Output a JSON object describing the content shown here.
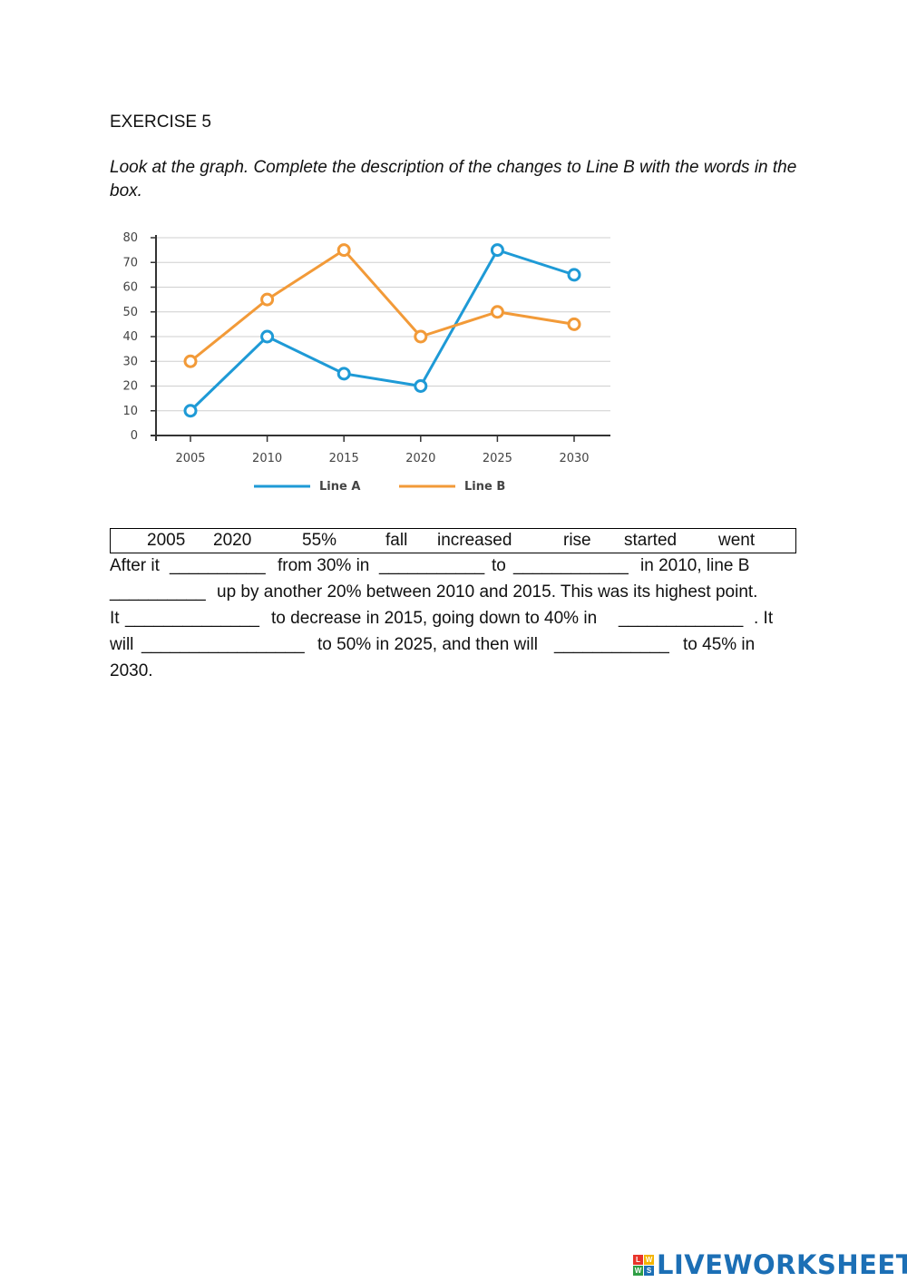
{
  "exercise_title": "EXERCISE 5",
  "instructions": "Look at the graph. Complete the description of the changes to Line B with the words in the box.",
  "chart_data": {
    "type": "line",
    "categories": [
      "2005",
      "2010",
      "2015",
      "2020",
      "2025",
      "2030"
    ],
    "series": [
      {
        "name": "Line A",
        "color": "#1e9ad6",
        "values": [
          10,
          40,
          25,
          20,
          75,
          65
        ]
      },
      {
        "name": "Line B",
        "color": "#f29a38",
        "values": [
          30,
          55,
          75,
          40,
          50,
          45
        ]
      }
    ],
    "yticks": [
      0,
      10,
      20,
      30,
      40,
      50,
      60,
      70,
      80
    ],
    "ylim": [
      0,
      80
    ],
    "grid": true,
    "legend": "bottom"
  },
  "word_box": [
    "2005",
    "2020",
    "55%",
    "fall",
    "increased",
    "rise",
    "started",
    "went"
  ],
  "paragraph_lines": [
    [
      "After it",
      "__________",
      "from 30% in",
      "___________",
      "to",
      "____________",
      "in 2010, line B"
    ],
    [
      "__________",
      "up by another 20% between 2010 and 2015. This was its highest point."
    ],
    [
      "It",
      "______________",
      "to decrease in 2015, going down to 40% in",
      "_____________",
      ". It"
    ],
    [
      "will",
      "_________________",
      "to 50% in 2025, and then will",
      "____________",
      "to 45% in"
    ],
    [
      "2030."
    ]
  ],
  "logo": {
    "text": "LIVEWORKSHEETS",
    "mark_letters": [
      "L",
      "W",
      "W",
      "S"
    ],
    "mark_colors": [
      "#e8342a",
      "#f4b400",
      "#2e9e44",
      "#1c6fb5"
    ]
  }
}
